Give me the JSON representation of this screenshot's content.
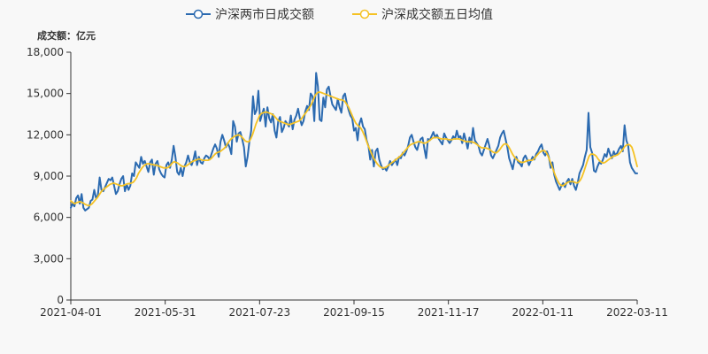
{
  "chart_data": {
    "type": "line",
    "unit_label": "成交额：亿元",
    "x_tick_labels": [
      "2021-04-01",
      "2021-05-31",
      "2021-07-23",
      "2021-09-15",
      "2021-11-17",
      "2022-01-11",
      "2022-03-11"
    ],
    "y_ticks": [
      0,
      3000,
      6000,
      9000,
      12000,
      15000,
      18000
    ],
    "y_tick_labels": [
      "0",
      "3,000",
      "6,000",
      "9,000",
      "12,000",
      "15,000",
      "18,000"
    ],
    "ylim": [
      0,
      18000
    ],
    "grid": false,
    "legend_position": "top-center",
    "series": [
      {
        "name": "沪深两市日成交额",
        "color": "#2b6ab0",
        "values": [
          6700,
          7000,
          6800,
          7400,
          7600,
          7000,
          7700,
          6700,
          6500,
          6600,
          6700,
          7200,
          7300,
          8000,
          7400,
          7600,
          8900,
          8000,
          7900,
          8200,
          8500,
          8800,
          8700,
          8900,
          8300,
          7700,
          7900,
          8400,
          8800,
          9000,
          7900,
          8400,
          8000,
          8300,
          9200,
          9000,
          10000,
          9800,
          9600,
          10400,
          9900,
          10100,
          9700,
          9300,
          10000,
          10200,
          9100,
          9900,
          10100,
          9500,
          9200,
          9000,
          8900,
          9800,
          10000,
          9600,
          10200,
          11200,
          10400,
          9300,
          9100,
          9600,
          9000,
          9700,
          10000,
          10500,
          10000,
          9800,
          10200,
          10800,
          9800,
          10400,
          10000,
          9900,
          10300,
          10500,
          10400,
          10200,
          10600,
          11000,
          11300,
          11000,
          10400,
          11500,
          12000,
          11600,
          11100,
          11400,
          11100,
          10600,
          13000,
          12600,
          11500,
          12100,
          12200,
          11700,
          11100,
          9700,
          10400,
          11500,
          12300,
          14800,
          13500,
          13800,
          15200,
          13000,
          13500,
          13900,
          12600,
          14000,
          13200,
          12900,
          13500,
          12300,
          11800,
          13000,
          13300,
          12200,
          12500,
          13000,
          12800,
          12600,
          13400,
          12400,
          13100,
          13400,
          13900,
          13200,
          12700,
          13000,
          13700,
          14100,
          13800,
          15000,
          14800,
          13000,
          16500,
          15500,
          13100,
          13000,
          14700,
          14000,
          15300,
          15500,
          14800,
          14200,
          14000,
          13800,
          14600,
          14000,
          13600,
          14800,
          15000,
          14300,
          13800,
          13400,
          13200,
          12300,
          12500,
          11600,
          12800,
          13200,
          12600,
          12400,
          11600,
          11200,
          10200,
          10900,
          9700,
          10800,
          11000,
          10200,
          9800,
          9500,
          9600,
          9400,
          9700,
          10100,
          9800,
          10000,
          10200,
          9800,
          10400,
          10300,
          10700,
          10500,
          10800,
          11200,
          11800,
          12000,
          11500,
          11100,
          10900,
          11400,
          11700,
          11800,
          11000,
          10300,
          11700,
          11600,
          11900,
          12200,
          11800,
          12000,
          11700,
          11500,
          11300,
          12100,
          11800,
          11600,
          11400,
          11600,
          11900,
          11700,
          12300,
          11800,
          11900,
          11400,
          12100,
          11600,
          11000,
          11800,
          11400,
          12500,
          11600,
          11400,
          11200,
          10700,
          10500,
          10900,
          11300,
          11700,
          11200,
          10500,
          10300,
          10600,
          10900,
          11200,
          11800,
          12100,
          12300,
          11700,
          11100,
          10300,
          9900,
          9500,
          10200,
          10400,
          10000,
          9900,
          9700,
          10300,
          10500,
          10200,
          9800,
          10100,
          10400,
          10200,
          10600,
          10800,
          11100,
          11300,
          10700,
          10500,
          10800,
          10400,
          9600,
          10000,
          9100,
          8600,
          8300,
          8000,
          8300,
          8500,
          8200,
          8600,
          8800,
          8400,
          8800,
          8300,
          8000,
          8500,
          9200,
          9500,
          9800,
          10400,
          10900,
          13600,
          11100,
          10700,
          9400,
          9300,
          9700,
          10000,
          9900,
          10200,
          10600,
          10400,
          11000,
          10600,
          10300,
          10800,
          10500,
          10700,
          11000,
          11200,
          10800,
          12700,
          11600,
          11200,
          10000,
          9600,
          9400,
          9200,
          9200
        ]
      },
      {
        "name": "沪深成交额五日均值",
        "color": "#f5c224",
        "values": [
          7200,
          7100,
          7000,
          7050,
          7100,
          7150,
          7100,
          7050,
          6950,
          6900,
          6850,
          6900,
          7000,
          7150,
          7300,
          7450,
          7650,
          7850,
          8000,
          8100,
          8200,
          8300,
          8400,
          8450,
          8500,
          8450,
          8400,
          8350,
          8300,
          8300,
          8350,
          8400,
          8450,
          8450,
          8500,
          8550,
          8700,
          8900,
          9200,
          9400,
          9600,
          9750,
          9850,
          9900,
          9900,
          9850,
          9850,
          9800,
          9800,
          9750,
          9700,
          9650,
          9600,
          9600,
          9600,
          9650,
          9800,
          9950,
          10050,
          10000,
          9950,
          9850,
          9750,
          9700,
          9700,
          9750,
          9850,
          9950,
          10050,
          10100,
          10150,
          10200,
          10250,
          10200,
          10150,
          10150,
          10150,
          10150,
          10200,
          10300,
          10450,
          10600,
          10700,
          10750,
          10800,
          10900,
          11000,
          11150,
          11350,
          11550,
          11700,
          11800,
          11900,
          11950,
          12000,
          11950,
          11850,
          11700,
          11550,
          11500,
          11500,
          11700,
          12000,
          12400,
          12800,
          13100,
          13400,
          13550,
          13600,
          13650,
          13650,
          13600,
          13550,
          13500,
          13400,
          13250,
          13100,
          13000,
          12950,
          12900,
          12850,
          12800,
          12750,
          12750,
          12800,
          12850,
          12900,
          12950,
          13000,
          13100,
          13250,
          13450,
          13600,
          13800,
          14000,
          14200,
          14500,
          14800,
          15000,
          15100,
          15100,
          15050,
          15000,
          14950,
          14900,
          14850,
          14800,
          14750,
          14700,
          14650,
          14600,
          14550,
          14550,
          14500,
          14400,
          14200,
          14000,
          13700,
          13400,
          13100,
          12850,
          12700,
          12600,
          12450,
          12200,
          11900,
          11550,
          11200,
          10900,
          10600,
          10300,
          10100,
          9900,
          9750,
          9650,
          9600,
          9600,
          9650,
          9750,
          9850,
          9950,
          10050,
          10150,
          10250,
          10350,
          10450,
          10600,
          10750,
          10900,
          11050,
          11200,
          11300,
          11350,
          11400,
          11450,
          11500,
          11500,
          11450,
          11400,
          11400,
          11450,
          11550,
          11650,
          11750,
          11800,
          11800,
          11800,
          11750,
          11700,
          11700,
          11700,
          11700,
          11650,
          11650,
          11650,
          11700,
          11700,
          11700,
          11700,
          11650,
          11600,
          11550,
          11500,
          11500,
          11500,
          11500,
          11450,
          11400,
          11300,
          11200,
          11100,
          11050,
          11050,
          11050,
          11000,
          10950,
          10850,
          10750,
          10700,
          10700,
          10800,
          10950,
          11150,
          11300,
          11350,
          11300,
          11100,
          10850,
          10600,
          10400,
          10250,
          10150,
          10050,
          10000,
          10000,
          10050,
          10100,
          10150,
          10150,
          10150,
          10250,
          10400,
          10550,
          10700,
          10800,
          10850,
          10850,
          10700,
          10450,
          10100,
          9750,
          9400,
          9050,
          8750,
          8500,
          8350,
          8300,
          8350,
          8450,
          8550,
          8600,
          8600,
          8600,
          8550,
          8500,
          8550,
          8700,
          8950,
          9300,
          9700,
          10100,
          10450,
          10600,
          10600,
          10550,
          10450,
          10250,
          10100,
          10000,
          9950,
          10000,
          10100,
          10200,
          10300,
          10400,
          10450,
          10500,
          10550,
          10650,
          10800,
          10950,
          11150,
          11250,
          11300,
          11250,
          11100,
          10700,
          10200,
          9700
        ]
      }
    ]
  }
}
